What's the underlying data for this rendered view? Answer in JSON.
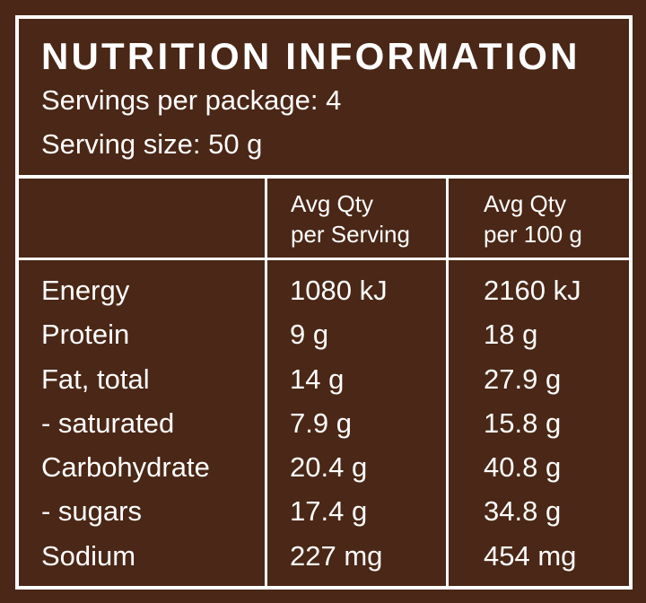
{
  "panel": {
    "title": "NUTRITION INFORMATION",
    "servings_per_package": "Servings per package: 4",
    "serving_size": "Serving size: 50 g"
  },
  "columns": {
    "per_serving": [
      "Avg Qty",
      "per Serving"
    ],
    "per_100g": [
      "Avg Qty",
      "per 100 g"
    ]
  },
  "rows": [
    {
      "name": "Energy",
      "per_serving": "1080 kJ",
      "per_100g": "2160 kJ"
    },
    {
      "name": "Protein",
      "per_serving": "9 g",
      "per_100g": "18 g"
    },
    {
      "name": "Fat, total",
      "per_serving": "14 g",
      "per_100g": "27.9 g"
    },
    {
      "name": "- saturated",
      "per_serving": "7.9 g",
      "per_100g": "15.8 g"
    },
    {
      "name": "Carbohydrate",
      "per_serving": "20.4 g",
      "per_100g": "40.8 g"
    },
    {
      "name": "- sugars",
      "per_serving": "17.4 g",
      "per_100g": "34.8 g"
    },
    {
      "name": "Sodium",
      "per_serving": "227 mg",
      "per_100g": "454 mg"
    }
  ],
  "colors": {
    "background": "#4a2716",
    "border": "#ffffff",
    "text": "#ffffff"
  }
}
